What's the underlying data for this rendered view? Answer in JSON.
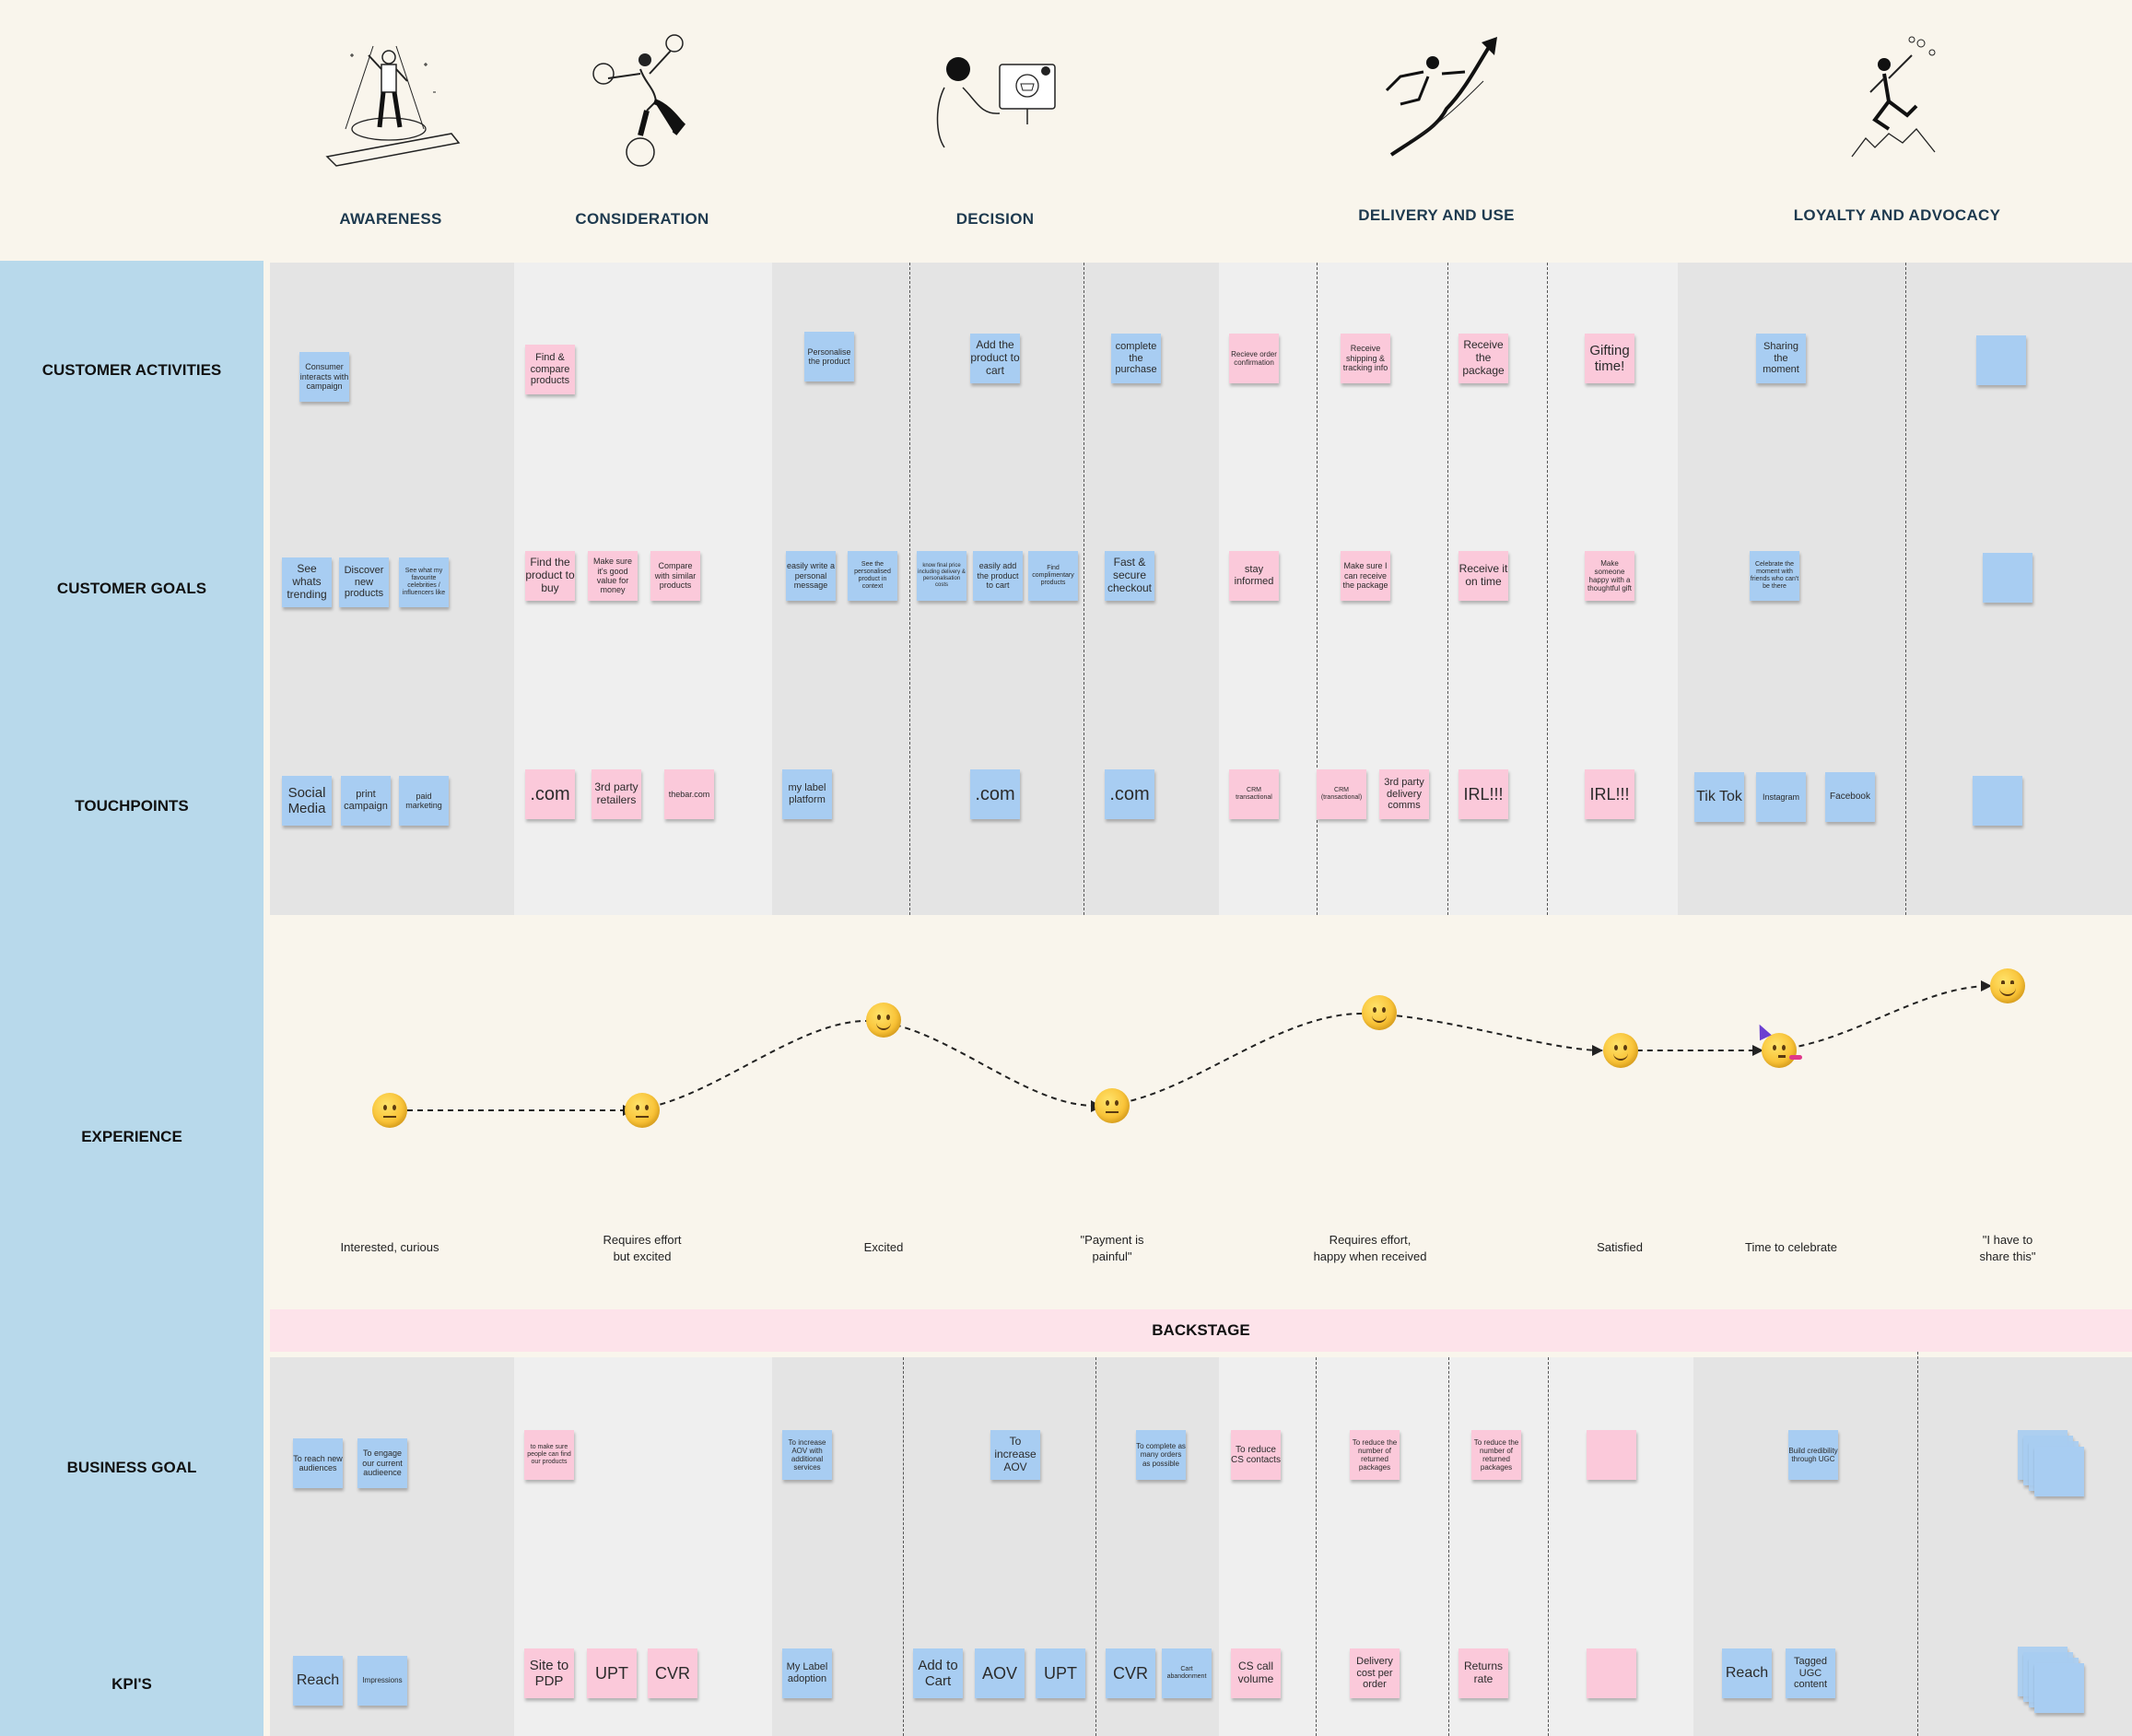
{
  "phases": [
    "AWARENESS",
    "CONSIDERATION",
    "DECISION",
    "DELIVERY AND USE",
    "LOYALTY AND ADVOCACY"
  ],
  "rows": {
    "customer_activities": "CUSTOMER ACTIVITIES",
    "customer_goals": "CUSTOMER GOALS",
    "touchpoints": "TOUCHPOINTS",
    "experience": "EXPERIENCE",
    "business_goal": "BUSINESS GOAL",
    "kpis": "KPI'S"
  },
  "backstage": "BACKSTAGE",
  "colors": {
    "blue_note": "#a8cdf2",
    "pink_note": "#fbc9da",
    "sidebar": "#b8d9eb",
    "header_bg": "#f9f5ec",
    "backstage_bg": "#fde3ea"
  },
  "activities": [
    "Consumer interacts with campaign",
    "Find & compare products",
    "Personalise the product",
    "Add the product to cart",
    "complete the purchase",
    "Recieve order confirmation",
    "Receive shipping & tracking info",
    "Receive the package",
    "Gifting time!",
    "Sharing the moment",
    ""
  ],
  "goals": [
    "See whats trending",
    "Discover new products",
    "See what my favourite celebrities / influencers like",
    "Find the product to buy",
    "Make sure it's good value for money",
    "Compare with similar products",
    "easily write a personal message",
    "See the personalised product in context",
    "know final price including delivery & personalisation costs",
    "easily add the product to cart",
    "Find complimentary products",
    "Fast & secure checkout",
    "stay informed",
    "Make sure I can receive the package",
    "Receive it on time",
    "Make someone happy with a thoughtful gift",
    "Celebrate the moment with friends who can't be there",
    ""
  ],
  "touchpoints": [
    "Social Media",
    "print campaign",
    "paid marketing",
    ".com",
    "3rd party retailers",
    "thebar.com",
    "my label platform",
    ".com",
    ".com",
    "CRM transactional",
    "CRM (transactional)",
    "3rd party delivery comms",
    "IRL!!!",
    "IRL!!!",
    "Tik Tok",
    "Instagram",
    "Facebook",
    ""
  ],
  "experience": [
    "Interested, curious",
    "Requires effort\nbut excited",
    "Excited",
    "\"Payment is\npainful\"",
    "Requires effort,\nhappy when received",
    "Satisfied",
    "Time to celebrate",
    "\"I have to\nshare this\""
  ],
  "business_goals": [
    "To reach new audiences",
    "To engage our current audieence",
    "to make sure people can find our products",
    "To increase AOV with additional services",
    "To increase AOV",
    "To complete as many orders as possible",
    "To reduce CS contacts",
    "To reduce the number of returned packages",
    "To reduce the number of returned packages",
    "",
    "Build credibility through UGC",
    ""
  ],
  "kpis": [
    "Reach",
    "Impressions",
    "Site to PDP",
    "UPT",
    "CVR",
    "My Label adoption",
    "Add to Cart",
    "AOV",
    "UPT",
    "CVR",
    "Cart abandonment",
    "CS call volume",
    "Delivery cost per order",
    "Returns rate",
    "",
    "Reach",
    "Tagged UGC content",
    ""
  ],
  "icons": [
    "spotlight-figure-icon",
    "juggling-figure-icon",
    "shopping-screen-figure-icon",
    "rocket-arrow-figure-icon",
    "celebrating-figure-icon",
    "neutral-face-icon",
    "slightly-smiling-face-icon",
    "partying-face-icon",
    "smiling-face-icon"
  ]
}
